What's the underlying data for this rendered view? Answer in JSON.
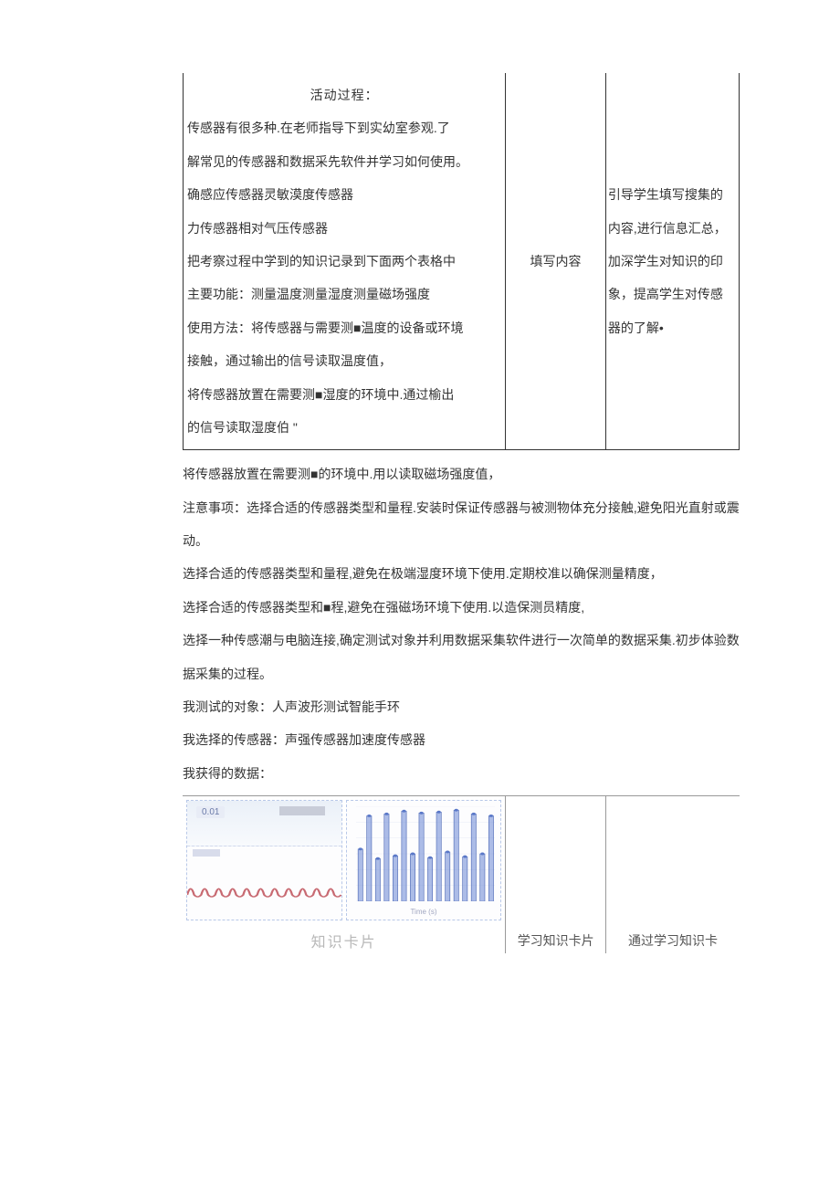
{
  "topTable": {
    "col1": {
      "title": "活动过程：",
      "lines": [
        "传感器有很多种.在老师指导下到实幼室参观.了",
        "解常见的传感器和数据采先软件并学习如何使用。",
        "确感应传感器灵敏漠度传感器",
        "力传感器相对气压传感器",
        "把考察过程中学到的知识记录到下面两个表格中",
        "主要功能：测量温度测量湿度测量磁场强度",
        "使用方法：将传感器与需要测■温度的设备或环境",
        "接触，通过输出的信号读取温度值，",
        "将传感器放置在需要测■湿度的环境中.通过榆出",
        "的信号读取湿度伯 \""
      ]
    },
    "col2": "填写内容",
    "col3": "引导学生填写搜集的内容,进行信息汇总，加深学生对知识的印象，提高学生对传感器的了解•"
  },
  "midParas": [
    "将传感器放置在需要测■的环境中.用以读取磁场强度值，",
    "注意事项：选择合适的传感器类型和量程.安装时保证传感器与被测物体充分接触,避免阳光直射或震动。",
    "选择合适的传感器类型和量程,避免在极端湿度环境下使用.定期校准以确保测量精度，",
    "选择合适的传感器类型和■程,避免在强磁场环境下使用.以造保测员精度,",
    "选择一种传感潮与电脑连接,确定测试对象并利用数据采集软件进行一次简单的数据采集.初步体验数据采集的过程。",
    "我测试的对象：人声波形测试智能手环",
    "我选择的传感器：声强传感器加速度传感器",
    "我获得的数据："
  ],
  "bottomTable": {
    "col2": "学习知识卡片",
    "col3": "通过学习知识卡",
    "cardLabel": "知识卡片"
  },
  "chartLeft": {
    "badge": "0.01",
    "wave": {
      "strokeColor": "#c86a72",
      "strokeWidth": 1.4,
      "baseline": 30,
      "amplitude": 14,
      "cycles": 11,
      "width": 100,
      "height": 50
    }
  },
  "chartRight": {
    "axisLabel": "Time (s)",
    "bars": {
      "count": 16,
      "fillColor": "#6a86d4",
      "strokeColor": "#4a66b4",
      "dotColor": "#5a78c8",
      "heightsPct": [
        55,
        90,
        45,
        92,
        48,
        95,
        50,
        93,
        46,
        94,
        52,
        96,
        47,
        92,
        50,
        90
      ],
      "gridColor": "#e8ecf6",
      "gridLines": 6
    }
  },
  "colors": {
    "textMain": "#333333",
    "textMuted": "#555555",
    "borderMain": "#333333",
    "borderLight": "#999999",
    "dashBorder": "#b8c8e8",
    "background": "#ffffff"
  }
}
